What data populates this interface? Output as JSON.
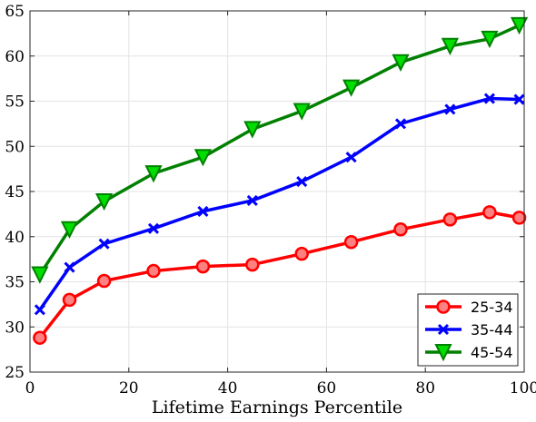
{
  "chart_data": {
    "type": "line",
    "xlabel": "Lifetime Earnings Percentile",
    "ylabel": "",
    "xlim": [
      0,
      100
    ],
    "ylim": [
      25,
      65
    ],
    "xticks": [
      0,
      20,
      40,
      60,
      80,
      100
    ],
    "yticks": [
      25,
      30,
      35,
      40,
      45,
      50,
      55,
      60,
      65
    ],
    "grid": true,
    "legend": "bottom-right",
    "series": [
      {
        "name": "25-34",
        "color": "#ff0000",
        "marker": "circle",
        "marker_fill": "#ff8080",
        "x": [
          2,
          8,
          15,
          25,
          35,
          45,
          55,
          65,
          75,
          85,
          93,
          99
        ],
        "y": [
          28.8,
          33.0,
          35.1,
          36.2,
          36.7,
          36.9,
          38.1,
          39.4,
          40.8,
          41.9,
          42.7,
          42.1
        ]
      },
      {
        "name": "35-44",
        "color": "#0000ff",
        "marker": "x",
        "marker_fill": "#0000ff",
        "x": [
          2,
          8,
          15,
          25,
          35,
          45,
          55,
          65,
          75,
          85,
          93,
          99
        ],
        "y": [
          31.9,
          36.6,
          39.2,
          40.9,
          42.8,
          44.0,
          46.1,
          48.8,
          52.5,
          54.1,
          55.3,
          55.2
        ]
      },
      {
        "name": "45-54",
        "color": "#008000",
        "marker": "triangle-down",
        "marker_fill": "#00dd00",
        "x": [
          2,
          8,
          15,
          25,
          35,
          45,
          55,
          65,
          75,
          85,
          93,
          99
        ],
        "y": [
          35.8,
          40.8,
          43.9,
          47.0,
          48.8,
          51.9,
          53.9,
          56.5,
          59.3,
          61.1,
          61.9,
          63.4
        ]
      }
    ]
  }
}
